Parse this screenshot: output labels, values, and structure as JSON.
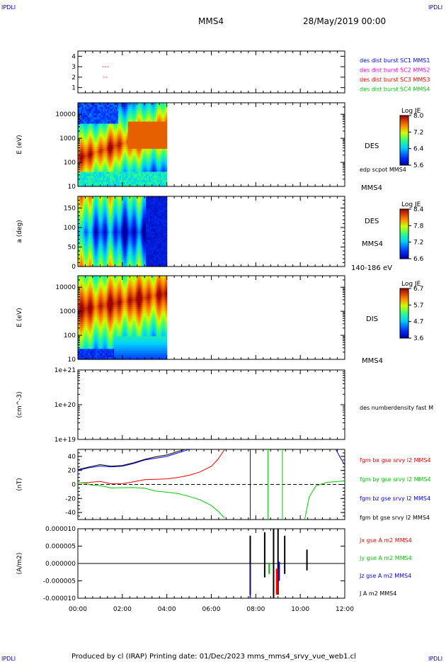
{
  "header": {
    "corner_left": "IPDLI",
    "corner_right": "IPDLI",
    "spacecraft": "MMS4",
    "date": "28/May/2019 00:00"
  },
  "footer": {
    "text": "Produced by cl (IRAP)   Printing date: 01/Dec/2023   mms_mms4_srvy_vue_web1.cl",
    "corner_left": "IPDLI",
    "corner_right": "IPDLI"
  },
  "colors": {
    "blue": "#0000ff",
    "magenta": "#ff00ff",
    "red": "#ff0000",
    "green": "#00cc00",
    "black": "#000000"
  },
  "chart_data": [
    {
      "type": "scatter",
      "panel": "burst",
      "yticks": [
        "1",
        "2",
        "3",
        "4"
      ],
      "ylim": [
        0.5,
        4.5
      ],
      "legend": [
        {
          "name": "des dist burst SC1 MMS1",
          "color": "#0000ff"
        },
        {
          "name": "des dist burst SC2 MMS2",
          "color": "#ff00ff"
        },
        {
          "name": "des dist burst SC3 MMS3",
          "color": "#ff0000"
        },
        {
          "name": "des dist burst SC4 MMS4",
          "color": "#00cc00"
        }
      ],
      "segments": [
        {
          "spacecraft": 3,
          "t_start": 1.1,
          "t_end": 1.4,
          "color": "#ff0000"
        },
        {
          "spacecraft": 2,
          "t_start": 1.15,
          "t_end": 1.35,
          "color": "#ff00ff"
        }
      ]
    },
    {
      "type": "heatmap",
      "panel": "des_energy",
      "ylabel": "E (eV)",
      "yscale": "log",
      "ylim": [
        10,
        30000
      ],
      "yticks": [
        "10",
        "100",
        "1000",
        "10000"
      ],
      "data_end_hour": 4.0,
      "right_labels": [
        "DES",
        "edp scpot MMS4",
        "MMS4"
      ],
      "colorbar": {
        "title": "Log JE",
        "ticks": [
          "5.6",
          "6.4",
          "7.2",
          "8.0"
        ]
      }
    },
    {
      "type": "heatmap",
      "panel": "des_pitch",
      "ylabel": "a (deg)",
      "ylim": [
        0,
        180
      ],
      "yticks": [
        "0",
        "50",
        "100",
        "150"
      ],
      "data_end_hour": 4.0,
      "right_labels": [
        "DES",
        "MMS4",
        "140-186 eV"
      ],
      "colorbar": {
        "title": "Log JE",
        "ticks": [
          "6.6",
          "7.2",
          "7.8",
          "8.4"
        ]
      }
    },
    {
      "type": "heatmap",
      "panel": "dis_energy",
      "ylabel": "E (eV)",
      "yscale": "log",
      "ylim": [
        10,
        30000
      ],
      "yticks": [
        "10",
        "100",
        "1000",
        "10000"
      ],
      "data_end_hour": 4.0,
      "right_labels": [
        "DIS",
        "MMS4"
      ],
      "colorbar": {
        "title": "Log JE",
        "ticks": [
          "3.6",
          "4.7",
          "5.7",
          "6.7"
        ]
      }
    },
    {
      "type": "line",
      "panel": "density",
      "ylabel": "(cm^-3)",
      "yscale": "log",
      "yticks": [
        "1e+19",
        "1e+20",
        "1e+21"
      ],
      "legend": [
        {
          "name": "des numberdensity fast M",
          "color": "#000000"
        }
      ],
      "series": []
    },
    {
      "type": "line",
      "panel": "fgm",
      "ylabel": "(nT)",
      "ylim": [
        -50,
        50
      ],
      "yticks": [
        "-40",
        "-20",
        "0",
        "20",
        "40"
      ],
      "zero_line": true,
      "legend": [
        {
          "name": "fgm bx gse srvy l2 MMS4",
          "color": "#ff0000"
        },
        {
          "name": "fgm by gse srvy l2 MMS4",
          "color": "#00cc00"
        },
        {
          "name": "fgm bz gse srvy l2 MMS4",
          "color": "#0000ff"
        },
        {
          "name": "fgm bt gse srvy l2 MMS4",
          "color": "#000000"
        }
      ],
      "series": [
        {
          "name": "fgm bx gse srvy l2 MMS4",
          "color": "#ff0000",
          "x": [
            0,
            0.5,
            1,
            1.5,
            2,
            2.5,
            3,
            3.5,
            4,
            4.5,
            5,
            5.5,
            6,
            6.3,
            6.6
          ],
          "y": [
            2,
            1,
            3,
            2,
            3,
            4,
            5,
            6,
            8,
            10,
            13,
            18,
            26,
            36,
            50
          ]
        },
        {
          "name": "fgm by gse srvy l2 MMS4",
          "color": "#00cc00",
          "x": [
            0,
            0.3,
            0.6,
            1,
            1.5,
            2,
            2.5,
            3,
            3.5,
            4,
            4.5,
            5,
            5.5,
            6,
            6.3,
            6.6
          ],
          "y": [
            2,
            4,
            0,
            -1,
            -3,
            -4,
            -6,
            -7,
            -9,
            -11,
            -13,
            -17,
            -22,
            -30,
            -38,
            -48
          ]
        },
        {
          "name": "fgm bz gse srvy l2 MMS4",
          "color": "#0000ff",
          "x": [
            0,
            0.5,
            1,
            1.5,
            2,
            2.5,
            3,
            3.5,
            4,
            4.5,
            5
          ],
          "y": [
            20,
            22,
            25,
            26,
            28,
            30,
            33,
            36,
            40,
            45,
            50
          ]
        },
        {
          "name": "fgm bt gse srvy l2 MMS4",
          "color": "#000000",
          "x": [
            0,
            0.5,
            1,
            1.5,
            2,
            2.5,
            3,
            3.5,
            4,
            4.5,
            4.8
          ],
          "y": [
            21,
            23,
            27,
            27,
            29,
            31,
            34,
            38,
            42,
            47,
            50
          ]
        }
      ]
    },
    {
      "type": "line",
      "panel": "current",
      "ylabel": "(A/m2)",
      "ylim": [
        -1e-05,
        1e-05
      ],
      "yticks": [
        "-0.000010",
        "-0.000005",
        "0.000000",
        "0.000005",
        "0.000010"
      ],
      "legend": [
        {
          "name": "Jx gse A m2 MMS4",
          "color": "#ff0000"
        },
        {
          "name": "Jy gse A m2 MMS4",
          "color": "#00cc00"
        },
        {
          "name": "Jz gse A m2 MMS4",
          "color": "#0000ff"
        },
        {
          "name": "J A m2 MMS4",
          "color": "#000000"
        }
      ],
      "series": []
    }
  ],
  "xaxis": {
    "ticks": [
      "00:00",
      "02:00",
      "04:00",
      "06:00",
      "08:00",
      "10:00",
      "12:00"
    ],
    "xlim": [
      0,
      12
    ]
  }
}
